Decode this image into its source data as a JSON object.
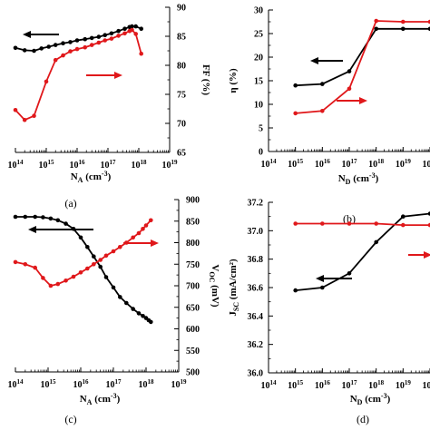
{
  "colors": {
    "black_series": "#000000",
    "red_series": "#e0181b",
    "axis": "#000000"
  },
  "chart_data": [
    {
      "panel_label": "(a)",
      "type": "line",
      "xscale": "log",
      "xlim_exp": [
        14,
        19
      ],
      "x_tick_labels": [
        "10^14",
        "10^15",
        "10^16",
        "10^17",
        "10^18",
        "10^19"
      ],
      "xlabel": "N_A (cm^-3)",
      "ylabel_right": "FF (%)",
      "ylim_right": [
        65,
        90
      ],
      "y_tick_labels_right": [
        "65",
        "70",
        "75",
        "80",
        "85",
        "90"
      ],
      "left_axis": false,
      "series": [
        {
          "color": "black",
          "arrow": "left",
          "x": [
            100000000000000.0,
            200000000000000.0,
            400000000000000.0,
            700000000000000.0,
            1200000000000000.0,
            2000000000000000.0,
            3500000000000000.0,
            6000000000000000.0,
            1e+16,
            1.8e+16,
            3e+16,
            5e+16,
            8e+16,
            1.3e+17,
            2.2e+17,
            3.5e+17,
            5e+17,
            6e+17,
            8e+17,
            1.2e+18
          ],
          "y": [
            83.0,
            82.6,
            82.5,
            82.9,
            83.2,
            83.5,
            83.8,
            84.0,
            84.3,
            84.5,
            84.7,
            84.9,
            85.2,
            85.5,
            85.9,
            86.3,
            86.6,
            86.7,
            86.7,
            86.3
          ]
        },
        {
          "color": "red",
          "arrow": "right",
          "x": [
            100000000000000.0,
            200000000000000.0,
            400000000000000.0,
            1000000000000000.0,
            2000000000000000.0,
            3500000000000000.0,
            6000000000000000.0,
            1e+16,
            1.8e+16,
            3e+16,
            5e+16,
            8e+16,
            1.3e+17,
            2.2e+17,
            3.5e+17,
            5e+17,
            6e+17,
            8e+17,
            1.2e+18
          ],
          "y": [
            72.3,
            70.6,
            71.3,
            77.2,
            80.9,
            81.7,
            82.4,
            82.8,
            83.1,
            83.5,
            83.9,
            84.3,
            84.6,
            85.1,
            85.5,
            85.9,
            86.1,
            85.4,
            82.0
          ]
        }
      ]
    },
    {
      "panel_label": "(b)",
      "type": "line",
      "xscale": "log",
      "xlim_exp": [
        14,
        20
      ],
      "x_tick_labels": [
        "10^14",
        "10^15",
        "10^16",
        "10^17",
        "10^18",
        "10^19",
        "10^20"
      ],
      "xlabel": "N_D (cm^-3)",
      "ylabel_left": "η (%)",
      "ylim_left": [
        0,
        30
      ],
      "y_tick_labels_left": [
        "0",
        "5",
        "10",
        "15",
        "20",
        "25",
        "30"
      ],
      "series": [
        {
          "color": "black",
          "arrow": "left",
          "x": [
            1000000000000000.0,
            1e+16,
            1e+17,
            1e+18,
            1e+19,
            1e+20
          ],
          "y": [
            14.0,
            14.3,
            17.0,
            26.0,
            26.0,
            26.0
          ]
        },
        {
          "color": "red",
          "arrow": "right",
          "x": [
            1000000000000000.0,
            1e+16,
            1e+17,
            1e+18,
            1e+19,
            1e+20
          ],
          "y": [
            8.1,
            8.6,
            13.3,
            27.7,
            27.5,
            27.5
          ]
        }
      ]
    },
    {
      "panel_label": "(c)",
      "type": "line",
      "xscale": "log",
      "xlim_exp": [
        14,
        19
      ],
      "x_tick_labels": [
        "10^14",
        "10^15",
        "10^16",
        "10^17",
        "10^18",
        "10^19"
      ],
      "xlabel": "N_A (cm^-3)",
      "ylabel_right": "V_OC (mV)",
      "ylim_right": [
        500,
        900
      ],
      "y_tick_labels_right": [
        "500",
        "550",
        "600",
        "650",
        "700",
        "750",
        "800",
        "850",
        "900"
      ],
      "left_axis": false,
      "series": [
        {
          "color": "black",
          "arrow": "left",
          "x": [
            100000000000000.0,
            200000000000000.0,
            400000000000000.0,
            700000000000000.0,
            1200000000000000.0,
            2000000000000000.0,
            3500000000000000.0,
            6000000000000000.0,
            1e+16,
            1.6e+16,
            2.5e+16,
            4e+16,
            6e+16,
            1e+17,
            1.6e+17,
            2.5e+17,
            4e+17,
            6e+17,
            8e+17,
            1e+18,
            1.2e+18,
            1.4e+18
          ],
          "y": [
            860,
            860,
            860,
            859,
            856,
            852,
            844,
            832,
            812,
            790,
            768,
            744,
            720,
            696,
            674,
            660,
            646,
            636,
            630,
            625,
            620,
            616
          ]
        },
        {
          "color": "red",
          "arrow": "right",
          "x": [
            100000000000000.0,
            200000000000000.0,
            400000000000000.0,
            700000000000000.0,
            1200000000000000.0,
            2000000000000000.0,
            3500000000000000.0,
            6000000000000000.0,
            1e+16,
            1.6e+16,
            2.5e+16,
            4e+16,
            6e+16,
            1e+17,
            1.6e+17,
            2.5e+17,
            4e+17,
            6e+17,
            8e+17,
            1e+18,
            1.4e+18
          ],
          "y": [
            755,
            750,
            742,
            718,
            700,
            704,
            712,
            721,
            731,
            740,
            750,
            760,
            770,
            780,
            790,
            800,
            812,
            822,
            832,
            840,
            852
          ]
        }
      ]
    },
    {
      "panel_label": "(d)",
      "type": "line",
      "xscale": "log",
      "xlim_exp": [
        14,
        20
      ],
      "x_tick_labels": [
        "10^14",
        "10^15",
        "10^16",
        "10^17",
        "10^18",
        "10^19",
        "10^20"
      ],
      "xlabel": "N_D (cm^-3)",
      "ylabel_left": "J_SC (mA/cm²)",
      "ylim_left": [
        36.0,
        37.2
      ],
      "y_tick_labels_left": [
        "36.0",
        "36.2",
        "36.4",
        "36.6",
        "36.8",
        "37.0",
        "37.2"
      ],
      "series": [
        {
          "color": "black",
          "arrow": "left",
          "x": [
            1000000000000000.0,
            1e+16,
            1e+17,
            1e+18,
            1e+19,
            1e+20
          ],
          "y": [
            36.58,
            36.6,
            36.7,
            36.92,
            37.1,
            37.12
          ]
        },
        {
          "color": "red",
          "arrow": "right",
          "x": [
            1000000000000000.0,
            1e+16,
            1e+17,
            1e+18,
            1e+19,
            1e+20
          ],
          "y": [
            37.05,
            37.05,
            37.05,
            37.05,
            37.04,
            37.04
          ]
        }
      ]
    }
  ]
}
